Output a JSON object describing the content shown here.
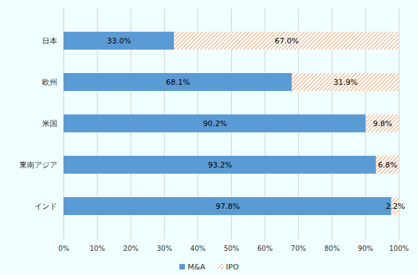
{
  "chart_data": {
    "type": "bar",
    "orientation": "horizontal",
    "stacked": true,
    "data_labels": true,
    "grid": true,
    "legend": "bottom",
    "categories": [
      "日本",
      "欧州",
      "米国",
      "東南アジア",
      "インド"
    ],
    "series": [
      {
        "name": "M&A",
        "color": "#5b9bd5",
        "values": [
          33.0,
          68.1,
          90.2,
          93.2,
          97.8
        ],
        "value_labels": [
          "33.0%",
          "68.1%",
          "90.2%",
          "93.2%",
          "97.8%"
        ]
      },
      {
        "name": "IPO",
        "color": "#ed7d31",
        "line_style": "hatched",
        "values": [
          67.0,
          31.9,
          9.8,
          6.8,
          2.2
        ],
        "value_labels": [
          "67.0%",
          "31.9%",
          "9.8%",
          "6.8%",
          "2.2%"
        ]
      }
    ],
    "xlim": [
      0,
      100
    ],
    "xticks": [
      {
        "value": 0,
        "label": "0%"
      },
      {
        "value": 10,
        "label": "10%"
      },
      {
        "value": 20,
        "label": "20%"
      },
      {
        "value": 30,
        "label": "30%"
      },
      {
        "value": 40,
        "label": "40%"
      },
      {
        "value": 50,
        "label": "50%"
      },
      {
        "value": 60,
        "label": "60%"
      },
      {
        "value": 70,
        "label": "70%"
      },
      {
        "value": 80,
        "label": "80%"
      },
      {
        "value": 90,
        "label": "90%"
      },
      {
        "value": 100,
        "label": "100%"
      }
    ]
  }
}
